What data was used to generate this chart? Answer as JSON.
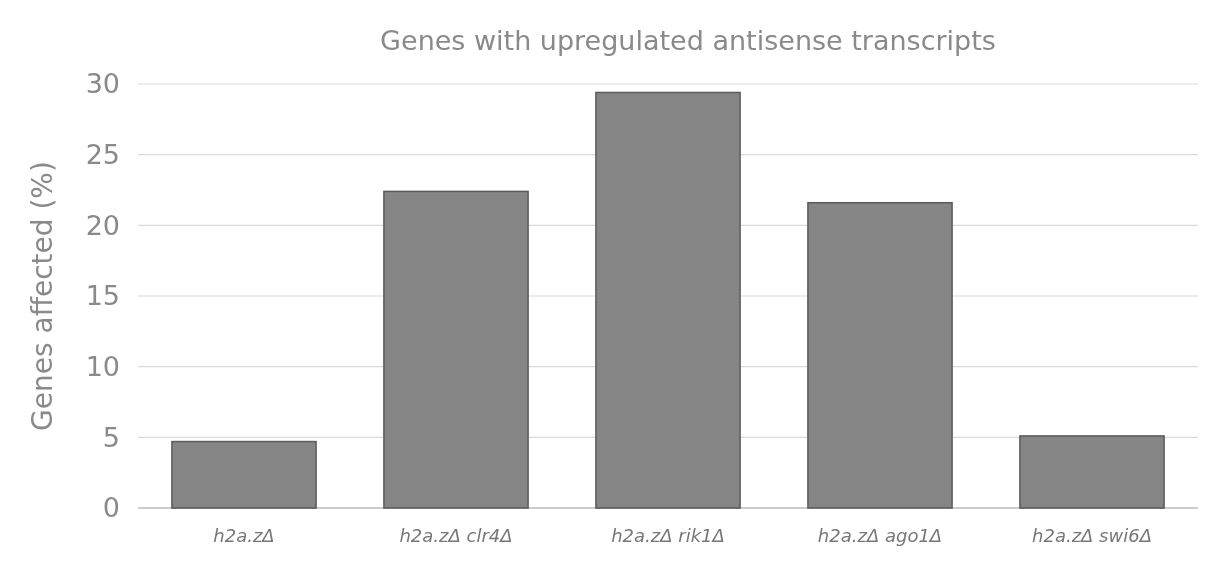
{
  "chart_data": {
    "type": "bar",
    "title": "Genes with upregulated antisense transcripts",
    "ylabel": "Genes affected (%)",
    "categories": [
      "h2a.zΔ",
      "h2a.zΔ clr4Δ",
      "h2a.zΔ rik1Δ",
      "h2a.zΔ ago1Δ",
      "h2a.zΔ swi6Δ"
    ],
    "values": [
      4.7,
      22.4,
      29.4,
      21.6,
      5.1
    ],
    "color": "#858585",
    "ylim": [
      0,
      30
    ],
    "yticks": [
      0,
      5,
      10,
      15,
      20,
      25,
      30
    ],
    "grid": "y"
  }
}
